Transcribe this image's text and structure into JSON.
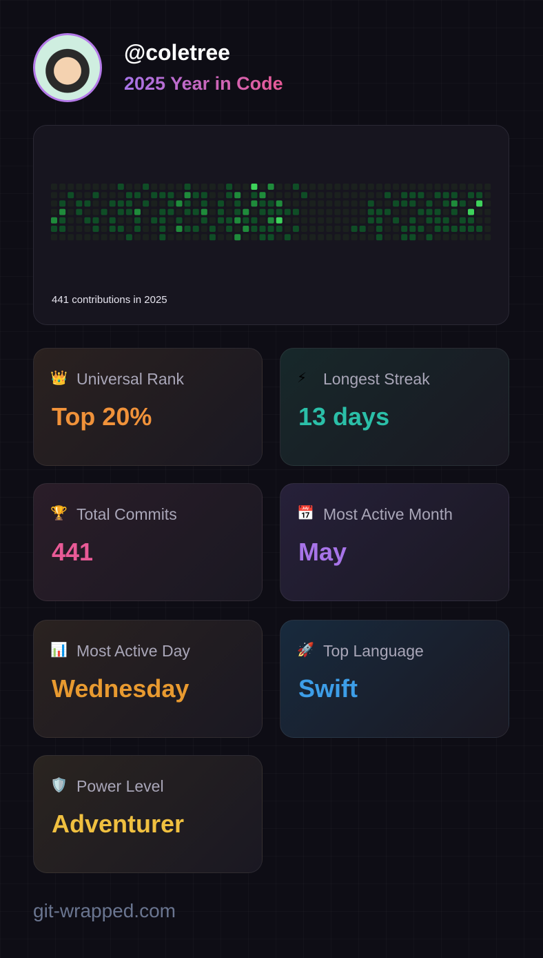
{
  "profile": {
    "username": "@coletree",
    "subtitle": "2025 Year in Code"
  },
  "contributions": {
    "caption": "441 contributions in 2025",
    "palette": [
      "#1b211e",
      "#0f4d26",
      "#1f8b3b",
      "#3ed35b"
    ],
    "levels": [
      [
        0,
        0,
        0,
        0,
        0,
        0,
        0,
        0,
        1,
        0,
        0,
        1,
        0,
        0,
        0,
        0,
        1,
        0,
        0,
        0,
        0,
        1,
        0,
        0,
        3,
        0,
        2,
        0,
        0,
        1,
        0,
        0,
        0,
        0,
        0,
        0,
        0,
        0,
        0,
        0,
        0,
        0,
        0,
        0,
        0,
        0,
        0,
        0,
        0,
        0,
        0,
        0,
        0
      ],
      [
        0,
        0,
        1,
        0,
        0,
        1,
        0,
        0,
        0,
        1,
        1,
        0,
        1,
        1,
        1,
        0,
        2,
        1,
        1,
        0,
        0,
        1,
        2,
        0,
        1,
        2,
        0,
        0,
        0,
        0,
        1,
        0,
        0,
        0,
        0,
        0,
        0,
        0,
        0,
        0,
        1,
        0,
        1,
        1,
        1,
        0,
        1,
        1,
        1,
        0,
        1,
        1,
        0
      ],
      [
        0,
        1,
        0,
        1,
        1,
        0,
        0,
        1,
        1,
        1,
        0,
        1,
        0,
        0,
        1,
        2,
        1,
        0,
        1,
        0,
        1,
        0,
        1,
        0,
        2,
        1,
        1,
        2,
        0,
        0,
        0,
        0,
        0,
        0,
        0,
        0,
        0,
        0,
        1,
        0,
        0,
        1,
        1,
        1,
        0,
        1,
        0,
        1,
        2,
        1,
        0,
        3,
        0
      ],
      [
        0,
        2,
        0,
        1,
        0,
        0,
        1,
        0,
        1,
        1,
        2,
        0,
        0,
        1,
        1,
        0,
        1,
        1,
        2,
        0,
        1,
        0,
        1,
        2,
        0,
        1,
        1,
        1,
        1,
        1,
        0,
        0,
        0,
        0,
        0,
        0,
        0,
        0,
        1,
        1,
        1,
        0,
        0,
        0,
        1,
        1,
        1,
        0,
        1,
        0,
        3,
        0,
        0
      ],
      [
        2,
        1,
        0,
        0,
        1,
        1,
        0,
        1,
        0,
        0,
        1,
        0,
        1,
        1,
        0,
        1,
        0,
        0,
        1,
        0,
        1,
        1,
        2,
        1,
        1,
        0,
        2,
        3,
        0,
        0,
        0,
        0,
        0,
        0,
        0,
        0,
        0,
        0,
        1,
        1,
        0,
        1,
        0,
        1,
        0,
        1,
        1,
        1,
        0,
        1,
        1,
        0,
        0
      ],
      [
        1,
        1,
        0,
        0,
        0,
        1,
        0,
        1,
        1,
        0,
        1,
        0,
        0,
        1,
        0,
        2,
        1,
        1,
        0,
        1,
        0,
        1,
        0,
        2,
        1,
        1,
        1,
        1,
        0,
        1,
        0,
        0,
        0,
        0,
        0,
        0,
        1,
        1,
        0,
        1,
        0,
        0,
        1,
        1,
        1,
        0,
        1,
        1,
        1,
        1,
        1,
        1,
        0
      ],
      [
        0,
        0,
        0,
        0,
        0,
        0,
        0,
        0,
        0,
        1,
        0,
        0,
        0,
        1,
        0,
        0,
        0,
        0,
        0,
        1,
        0,
        0,
        2,
        0,
        0,
        1,
        1,
        0,
        1,
        0,
        0,
        0,
        0,
        0,
        0,
        0,
        0,
        0,
        0,
        1,
        0,
        0,
        1,
        1,
        0,
        1,
        0,
        0,
        0,
        0,
        0,
        0,
        0
      ]
    ]
  },
  "cards": [
    {
      "icon": "👑",
      "label": "Universal Rank",
      "value": "Top 20%",
      "color": "#f0923a",
      "bg": "#2a211f"
    },
    {
      "icon": "⚡",
      "label": "Longest Streak",
      "value": "13 days",
      "color": "#2bbfa8",
      "bg": "#17282a"
    },
    {
      "icon": "🏆",
      "label": "Total Commits",
      "value": "441",
      "color": "#e85a96",
      "bg": "#2a1d28"
    },
    {
      "icon": "📅",
      "label": "Most Active Month",
      "value": "May",
      "color": "#a774e8",
      "bg": "#262039"
    },
    {
      "icon": "📊",
      "label": "Most Active Day",
      "value": "Wednesday",
      "color": "#e89a30",
      "bg": "#2a2220"
    },
    {
      "icon": "🚀",
      "label": "Top Language",
      "value": "Swift",
      "color": "#3d9ee8",
      "bg": "#182a3d"
    },
    {
      "icon": "🛡️",
      "label": "Power Level",
      "value": "Adventurer",
      "color": "#f0c040",
      "bg": "#2a2420"
    }
  ],
  "footer": {
    "site": "git-wrapped.com"
  }
}
